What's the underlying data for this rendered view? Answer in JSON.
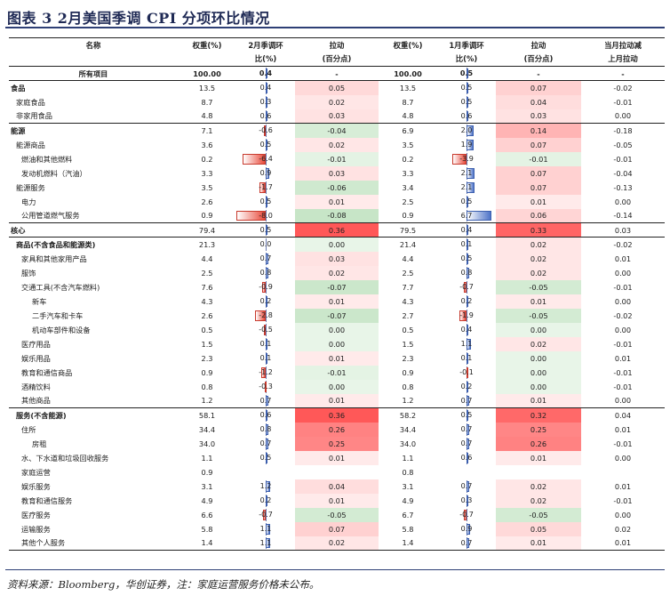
{
  "title": "图表 3   2月美国季调 CPI 分项环比情况",
  "headers": {
    "row1": [
      "名称",
      "权重(%)",
      "2月季调环",
      "拉动",
      "权重(%)",
      "1月季调环",
      "拉动",
      "当月拉动减"
    ],
    "row2": [
      "",
      "",
      "比(%)",
      "(百分点)",
      "",
      "比(%)",
      "(百分点)",
      "上月拉动"
    ]
  },
  "rows": [
    {
      "name": "所有项目",
      "indent": 0,
      "style": "all",
      "w2": "100.00",
      "m2": "0.4",
      "m2v": 0.4,
      "p2": "-",
      "p2v": 0,
      "w1": "100.00",
      "m1": "0.5",
      "m1v": 0.5,
      "p1": "-",
      "p1v": 0,
      "d": "-"
    },
    {
      "name": "食品",
      "indent": 0,
      "style": "bold",
      "w2": "13.5",
      "m2": "0.4",
      "m2v": 0.4,
      "p2": "0.05",
      "p2v": 0.05,
      "w1": "13.5",
      "m1": "0.5",
      "m1v": 0.5,
      "p1": "0.07",
      "p1v": 0.07,
      "d": "-0.02"
    },
    {
      "name": "家庭食品",
      "indent": 1,
      "w2": "8.7",
      "m2": "0.3",
      "m2v": 0.3,
      "p2": "0.02",
      "p2v": 0.02,
      "w1": "8.7",
      "m1": "0.5",
      "m1v": 0.5,
      "p1": "0.04",
      "p1v": 0.04,
      "d": "-0.01"
    },
    {
      "name": "非家用食品",
      "indent": 1,
      "w2": "4.8",
      "m2": "0.6",
      "m2v": 0.6,
      "p2": "0.03",
      "p2v": 0.03,
      "w1": "4.8",
      "m1": "0.6",
      "m1v": 0.6,
      "p1": "0.03",
      "p1v": 0.03,
      "d": "0.00"
    },
    {
      "name": "能源",
      "indent": 0,
      "style": "bold topline",
      "w2": "7.1",
      "m2": "-0.6",
      "m2v": -0.6,
      "p2": "-0.04",
      "p2v": -0.04,
      "w1": "6.9",
      "m1": "2.0",
      "m1v": 2.0,
      "p1": "0.14",
      "p1v": 0.14,
      "d": "-0.18"
    },
    {
      "name": "能源商品",
      "indent": 1,
      "w2": "3.6",
      "m2": "0.5",
      "m2v": 0.5,
      "p2": "0.02",
      "p2v": 0.02,
      "w1": "3.5",
      "m1": "1.9",
      "m1v": 1.9,
      "p1": "0.07",
      "p1v": 0.07,
      "d": "-0.05"
    },
    {
      "name": "燃油和其他燃料",
      "indent": 2,
      "w2": "0.2",
      "m2": "-6.4",
      "m2v": -6.4,
      "p2": "-0.01",
      "p2v": -0.01,
      "w1": "0.2",
      "m1": "-3.9",
      "m1v": -3.9,
      "p1": "-0.01",
      "p1v": -0.01,
      "d": "-0.01"
    },
    {
      "name": "发动机燃料（汽油）",
      "indent": 2,
      "w2": "3.3",
      "m2": "0.9",
      "m2v": 0.9,
      "p2": "0.03",
      "p2v": 0.03,
      "w1": "3.3",
      "m1": "2.1",
      "m1v": 2.1,
      "p1": "0.07",
      "p1v": 0.07,
      "d": "-0.04"
    },
    {
      "name": "能源服务",
      "indent": 1,
      "w2": "3.5",
      "m2": "-1.7",
      "m2v": -1.7,
      "p2": "-0.06",
      "p2v": -0.06,
      "w1": "3.4",
      "m1": "2.1",
      "m1v": 2.1,
      "p1": "0.07",
      "p1v": 0.07,
      "d": "-0.13"
    },
    {
      "name": "电力",
      "indent": 2,
      "w2": "2.6",
      "m2": "0.5",
      "m2v": 0.5,
      "p2": "0.01",
      "p2v": 0.01,
      "w1": "2.5",
      "m1": "0.5",
      "m1v": 0.5,
      "p1": "0.01",
      "p1v": 0.01,
      "d": "0.00"
    },
    {
      "name": "公用管道燃气服务",
      "indent": 2,
      "w2": "0.9",
      "m2": "-8.0",
      "m2v": -8.0,
      "p2": "-0.08",
      "p2v": -0.08,
      "w1": "0.9",
      "m1": "6.7",
      "m1v": 6.7,
      "p1": "0.06",
      "p1v": 0.06,
      "d": "-0.14"
    },
    {
      "name": "核心",
      "indent": 0,
      "style": "bold topline",
      "w2": "79.4",
      "m2": "0.5",
      "m2v": 0.5,
      "p2": "0.36",
      "p2v": 0.36,
      "w1": "79.5",
      "m1": "0.4",
      "m1v": 0.4,
      "p1": "0.33",
      "p1v": 0.33,
      "d": "0.03"
    },
    {
      "name": "商品(不含食品和能源类)",
      "indent": 1,
      "style": "bold topline",
      "w2": "21.3",
      "m2": "0.0",
      "m2v": 0.0,
      "p2": "0.00",
      "p2v": 0.0,
      "w1": "21.4",
      "m1": "0.1",
      "m1v": 0.1,
      "p1": "0.02",
      "p1v": 0.02,
      "d": "-0.02"
    },
    {
      "name": "家具和其他家用产品",
      "indent": 2,
      "w2": "4.4",
      "m2": "0.7",
      "m2v": 0.7,
      "p2": "0.03",
      "p2v": 0.03,
      "w1": "4.4",
      "m1": "0.5",
      "m1v": 0.5,
      "p1": "0.02",
      "p1v": 0.02,
      "d": "0.01"
    },
    {
      "name": "服饰",
      "indent": 2,
      "w2": "2.5",
      "m2": "0.8",
      "m2v": 0.8,
      "p2": "0.02",
      "p2v": 0.02,
      "w1": "2.5",
      "m1": "0.8",
      "m1v": 0.8,
      "p1": "0.02",
      "p1v": 0.02,
      "d": "0.00"
    },
    {
      "name": "交通工具(不含汽车燃料)",
      "indent": 2,
      "w2": "7.6",
      "m2": "-0.9",
      "m2v": -0.9,
      "p2": "-0.07",
      "p2v": -0.07,
      "w1": "7.7",
      "m1": "-0.7",
      "m1v": -0.7,
      "p1": "-0.05",
      "p1v": -0.05,
      "d": "-0.01"
    },
    {
      "name": "新车",
      "indent": 3,
      "w2": "4.3",
      "m2": "0.2",
      "m2v": 0.2,
      "p2": "0.01",
      "p2v": 0.01,
      "w1": "4.3",
      "m1": "0.2",
      "m1v": 0.2,
      "p1": "0.01",
      "p1v": 0.01,
      "d": "0.00"
    },
    {
      "name": "二手汽车和卡车",
      "indent": 3,
      "w2": "2.6",
      "m2": "-2.8",
      "m2v": -2.8,
      "p2": "-0.07",
      "p2v": -0.07,
      "w1": "2.7",
      "m1": "-1.9",
      "m1v": -1.9,
      "p1": "-0.05",
      "p1v": -0.05,
      "d": "-0.02"
    },
    {
      "name": "机动车部件和设备",
      "indent": 3,
      "w2": "0.5",
      "m2": "-0.5",
      "m2v": -0.5,
      "p2": "0.00",
      "p2v": 0.0,
      "w1": "0.5",
      "m1": "0.4",
      "m1v": 0.4,
      "p1": "0.00",
      "p1v": 0.0,
      "d": "0.00"
    },
    {
      "name": "医疗用品",
      "indent": 2,
      "w2": "1.5",
      "m2": "0.1",
      "m2v": 0.1,
      "p2": "0.00",
      "p2v": 0.0,
      "w1": "1.5",
      "m1": "1.1",
      "m1v": 1.1,
      "p1": "0.02",
      "p1v": 0.02,
      "d": "-0.01"
    },
    {
      "name": "娱乐用品",
      "indent": 2,
      "w2": "2.3",
      "m2": "0.1",
      "m2v": 0.1,
      "p2": "0.01",
      "p2v": 0.01,
      "w1": "2.3",
      "m1": "0.1",
      "m1v": 0.1,
      "p1": "0.00",
      "p1v": 0.0,
      "d": "0.01"
    },
    {
      "name": "教育和通信商品",
      "indent": 2,
      "w2": "0.9",
      "m2": "-1.2",
      "m2v": -1.2,
      "p2": "-0.01",
      "p2v": -0.01,
      "w1": "0.9",
      "m1": "-0.1",
      "m1v": -0.1,
      "p1": "0.00",
      "p1v": 0.0,
      "d": "-0.01"
    },
    {
      "name": "酒精饮料",
      "indent": 2,
      "w2": "0.8",
      "m2": "-0.3",
      "m2v": -0.3,
      "p2": "0.00",
      "p2v": 0.0,
      "w1": "0.8",
      "m1": "0.2",
      "m1v": 0.2,
      "p1": "0.00",
      "p1v": 0.0,
      "d": "-0.01"
    },
    {
      "name": "其他商品",
      "indent": 2,
      "w2": "1.2",
      "m2": "0.7",
      "m2v": 0.7,
      "p2": "0.01",
      "p2v": 0.01,
      "w1": "1.2",
      "m1": "0.7",
      "m1v": 0.7,
      "p1": "0.01",
      "p1v": 0.01,
      "d": "0.00"
    },
    {
      "name": "服务(不含能源)",
      "indent": 1,
      "style": "bold topline",
      "w2": "58.1",
      "m2": "0.6",
      "m2v": 0.6,
      "p2": "0.36",
      "p2v": 0.36,
      "w1": "58.2",
      "m1": "0.5",
      "m1v": 0.5,
      "p1": "0.32",
      "p1v": 0.32,
      "d": "0.04"
    },
    {
      "name": "住所",
      "indent": 2,
      "w2": "34.4",
      "m2": "0.8",
      "m2v": 0.8,
      "p2": "0.26",
      "p2v": 0.26,
      "w1": "34.4",
      "m1": "0.7",
      "m1v": 0.7,
      "p1": "0.25",
      "p1v": 0.25,
      "d": "0.01"
    },
    {
      "name": "房租",
      "indent": 3,
      "w2": "34.0",
      "m2": "0.7",
      "m2v": 0.7,
      "p2": "0.25",
      "p2v": 0.25,
      "w1": "34.0",
      "m1": "0.7",
      "m1v": 0.7,
      "p1": "0.26",
      "p1v": 0.26,
      "d": "-0.01"
    },
    {
      "name": "水、下水道和垃圾回收服务",
      "indent": 2,
      "w2": "1.1",
      "m2": "0.5",
      "m2v": 0.5,
      "p2": "0.01",
      "p2v": 0.01,
      "w1": "1.1",
      "m1": "0.6",
      "m1v": 0.6,
      "p1": "0.01",
      "p1v": 0.01,
      "d": "0.00"
    },
    {
      "name": "家庭运营",
      "indent": 2,
      "w2": "0.9",
      "m2": "",
      "m2v": 0,
      "p2": "",
      "p2v": null,
      "w1": "0.8",
      "m1": "",
      "m1v": 0,
      "p1": "",
      "p1v": null,
      "d": ""
    },
    {
      "name": "娱乐服务",
      "indent": 2,
      "w2": "3.1",
      "m2": "1.2",
      "m2v": 1.2,
      "p2": "0.04",
      "p2v": 0.04,
      "w1": "3.1",
      "m1": "0.7",
      "m1v": 0.7,
      "p1": "0.02",
      "p1v": 0.02,
      "d": "0.01"
    },
    {
      "name": "教育和通信服务",
      "indent": 2,
      "w2": "4.9",
      "m2": "0.2",
      "m2v": 0.2,
      "p2": "0.01",
      "p2v": 0.01,
      "w1": "4.9",
      "m1": "0.3",
      "m1v": 0.3,
      "p1": "0.02",
      "p1v": 0.02,
      "d": "-0.01"
    },
    {
      "name": "医疗服务",
      "indent": 2,
      "w2": "6.6",
      "m2": "-0.7",
      "m2v": -0.7,
      "p2": "-0.05",
      "p2v": -0.05,
      "w1": "6.7",
      "m1": "-0.7",
      "m1v": -0.7,
      "p1": "-0.05",
      "p1v": -0.05,
      "d": "0.00"
    },
    {
      "name": "运输服务",
      "indent": 2,
      "w2": "5.8",
      "m2": "1.1",
      "m2v": 1.1,
      "p2": "0.07",
      "p2v": 0.07,
      "w1": "5.8",
      "m1": "0.9",
      "m1v": 0.9,
      "p1": "0.05",
      "p1v": 0.05,
      "d": "0.02"
    },
    {
      "name": "其他个人服务",
      "indent": 2,
      "style": "lastrow",
      "w2": "1.4",
      "m2": "1.1",
      "m2v": 1.1,
      "p2": "0.02",
      "p2v": 0.02,
      "w1": "1.4",
      "m1": "0.7",
      "m1v": 0.7,
      "p1": "0.01",
      "p1v": 0.01,
      "d": "0.01"
    }
  ],
  "footer": "资料来源：Bloomberg，华创证券，注：家庭运营服务价格未公布。",
  "colors": {
    "accent": "#2e3f75",
    "neg_bar": "#e8493a",
    "pos_bar": "#4f74c8",
    "pull_pos": "#e74c4c",
    "pull_neg": "#4caf50"
  }
}
